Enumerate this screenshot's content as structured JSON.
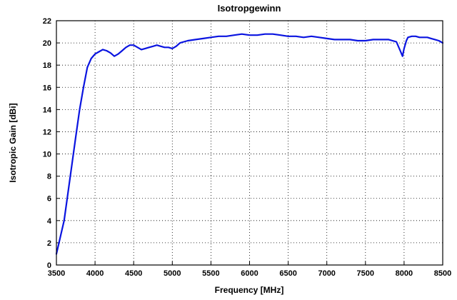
{
  "chart_data": {
    "type": "line",
    "title": "Isotropgewinn",
    "xlabel": "Frequency [MHz]",
    "ylabel": "Isotropic Gain [dBi]",
    "xlim": [
      3500,
      8500
    ],
    "ylim": [
      0,
      22
    ],
    "x_ticks": [
      3500,
      4000,
      4500,
      5000,
      5500,
      6000,
      6500,
      7000,
      7500,
      8000,
      8500
    ],
    "y_ticks": [
      0,
      2,
      4,
      6,
      8,
      10,
      12,
      14,
      16,
      18,
      20,
      22
    ],
    "grid": true,
    "series_color": "#0a14e0",
    "series": [
      {
        "x": [
          3500,
          3550,
          3600,
          3650,
          3700,
          3750,
          3800,
          3850,
          3900,
          3950,
          4000,
          4050,
          4100,
          4150,
          4200,
          4250,
          4300,
          4350,
          4400,
          4450,
          4500,
          4550,
          4600,
          4650,
          4700,
          4750,
          4800,
          4850,
          4900,
          4950,
          5000,
          5050,
          5100,
          5150,
          5200,
          5300,
          5400,
          5500,
          5600,
          5700,
          5800,
          5900,
          6000,
          6100,
          6200,
          6300,
          6400,
          6500,
          6600,
          6700,
          6800,
          6900,
          7000,
          7100,
          7200,
          7300,
          7400,
          7500,
          7600,
          7700,
          7800,
          7850,
          7900,
          7950,
          7980,
          8000,
          8030,
          8050,
          8100,
          8150,
          8200,
          8250,
          8300,
          8350,
          8400,
          8450,
          8500
        ],
        "y": [
          1.0,
          2.5,
          4.0,
          6.5,
          9.0,
          11.5,
          14.0,
          16.0,
          17.8,
          18.6,
          19.0,
          19.2,
          19.4,
          19.3,
          19.1,
          18.8,
          19.0,
          19.3,
          19.6,
          19.8,
          19.8,
          19.6,
          19.4,
          19.5,
          19.6,
          19.7,
          19.8,
          19.7,
          19.6,
          19.6,
          19.5,
          19.7,
          20.0,
          20.1,
          20.2,
          20.3,
          20.4,
          20.5,
          20.6,
          20.6,
          20.7,
          20.8,
          20.7,
          20.7,
          20.8,
          20.8,
          20.7,
          20.6,
          20.6,
          20.5,
          20.6,
          20.5,
          20.4,
          20.3,
          20.3,
          20.3,
          20.2,
          20.2,
          20.3,
          20.3,
          20.3,
          20.2,
          20.1,
          19.3,
          18.8,
          19.5,
          20.2,
          20.5,
          20.6,
          20.6,
          20.5,
          20.5,
          20.5,
          20.4,
          20.3,
          20.2,
          20.0
        ]
      }
    ]
  }
}
